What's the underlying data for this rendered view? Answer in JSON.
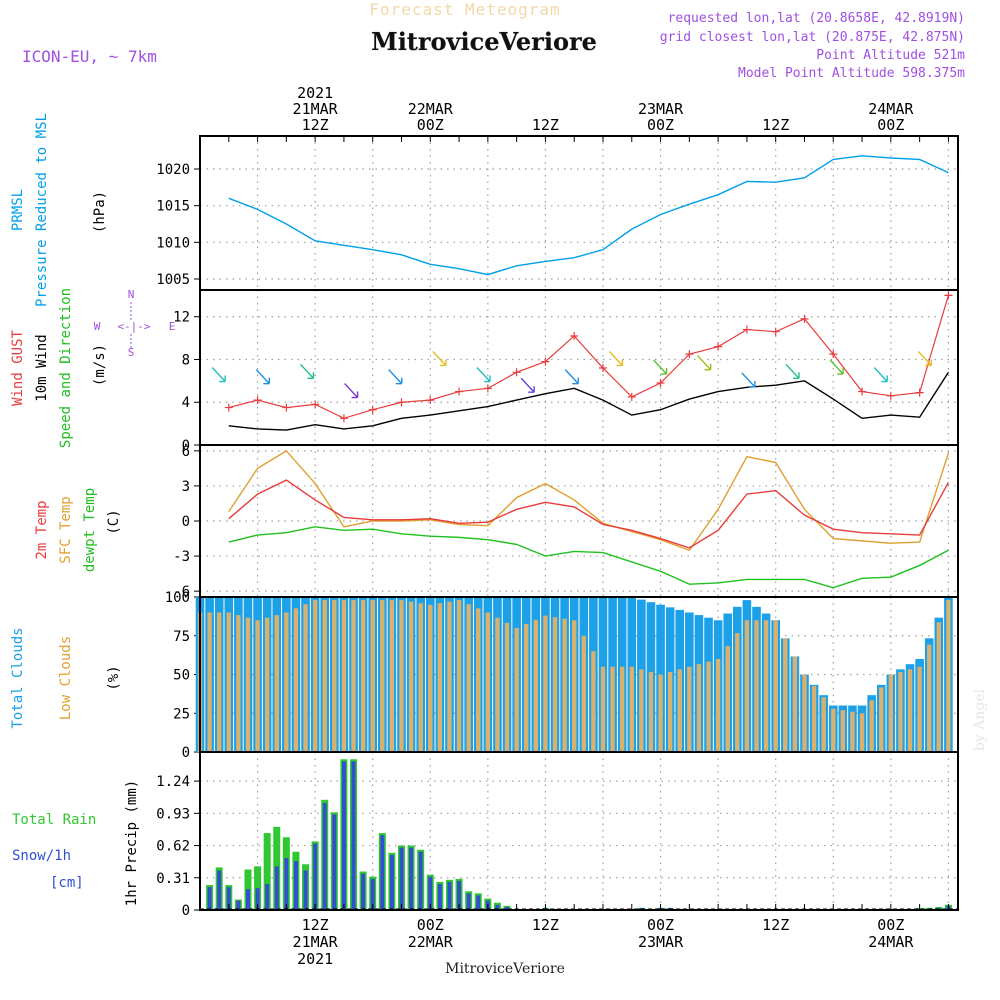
{
  "header": {
    "title_faded": "Forecast Meteogram",
    "location": "MitroviceVeriore",
    "model": "ICON-EU, ~ 7km",
    "requested": "requested lon,lat (20.8658E, 42.8919N)",
    "closest": "grid closest lon,lat (20.875E, 42.875N)",
    "point_alt": "Point Altitude 521m",
    "model_alt": "Model Point Altitude 598.375m",
    "watermark": "by Angel",
    "bottom_location": "MitroviceVeriore"
  },
  "time_axis": {
    "top": [
      {
        "t": 12,
        "lines": [
          "2021",
          "21MAR",
          "12Z"
        ]
      },
      {
        "t": 24,
        "lines": [
          "22MAR",
          "00Z"
        ]
      },
      {
        "t": 36,
        "lines": [
          "12Z"
        ]
      },
      {
        "t": 48,
        "lines": [
          "23MAR",
          "00Z"
        ]
      },
      {
        "t": 60,
        "lines": [
          "12Z"
        ]
      },
      {
        "t": 72,
        "lines": [
          "24MAR",
          "00Z"
        ]
      }
    ],
    "bottom": [
      {
        "t": 12,
        "lines": [
          "12Z",
          "21MAR",
          "2021"
        ]
      },
      {
        "t": 24,
        "lines": [
          "00Z",
          "22MAR"
        ]
      },
      {
        "t": 36,
        "lines": [
          "12Z"
        ]
      },
      {
        "t": 48,
        "lines": [
          "00Z",
          "23MAR"
        ]
      },
      {
        "t": 60,
        "lines": [
          "12Z"
        ]
      },
      {
        "t": 72,
        "lines": [
          "00Z",
          "24MAR"
        ]
      }
    ]
  },
  "panel_labels": {
    "pressure": {
      "line1": "PRMSL",
      "line2": "Pressure Reduced to MSL",
      "unit": "(hPa)"
    },
    "wind": {
      "gust": "Wind GUST",
      "wind10": "10m Wind",
      "dir": "Speed and Direction",
      "unit": "(m/s)",
      "compass_n": "N",
      "compass_s": "S",
      "compass_w": "W",
      "compass_e": "E",
      "compass_arrows": "<-|->"
    },
    "temp": {
      "t2m": "2m Temp",
      "sfc": "SFC Temp",
      "dew": "dewpt Temp",
      "unit": "(C)"
    },
    "clouds": {
      "total": "Total Clouds",
      "low": "Low Clouds",
      "unit": "(%)"
    },
    "precip": {
      "rain": "Total  Rain",
      "snow": "Snow/1h",
      "snow_unit": "[cm]",
      "unit": "1hr Precip (mm)"
    }
  },
  "colors": {
    "pressure": "#00a0e8",
    "gust": "#e83c3c",
    "wind": "#000000",
    "t2m": "#e83c3c",
    "sfc": "#e0a030",
    "dew": "#20c020",
    "total_clouds": "#1ca0e8",
    "low_clouds": "#d8b070",
    "rain": "#30c830",
    "snow": "#3050d0",
    "labels_purple": "#a050e0"
  },
  "chart_data": [
    {
      "type": "line",
      "title": "PRMSL Pressure Reduced to MSL",
      "ylabel": "(hPa)",
      "ylim": [
        1003.5,
        1024.5
      ],
      "yticks": [
        1005,
        1010,
        1015,
        1020
      ],
      "x": [
        3,
        6,
        9,
        12,
        15,
        18,
        21,
        24,
        27,
        30,
        33,
        36,
        39,
        42,
        45,
        48,
        51,
        54,
        57,
        60,
        63,
        66,
        69,
        72,
        75,
        78
      ],
      "series": [
        {
          "name": "PRMSL",
          "values": [
            1016,
            1014.5,
            1012.5,
            1010.2,
            1009.6,
            1009.0,
            1008.3,
            1007.0,
            1006.4,
            1005.6,
            1006.8,
            1007.4,
            1007.9,
            1009.0,
            1011.8,
            1013.8,
            1015.2,
            1016.5,
            1018.3,
            1018.2,
            1018.8,
            1021.3,
            1021.8,
            1021.5,
            1021.3,
            1019.5
          ]
        }
      ]
    },
    {
      "type": "line",
      "title": "Wind GUST / 10m Wind Speed and Direction",
      "ylabel": "(m/s)",
      "ylim": [
        0,
        14.5
      ],
      "yticks": [
        0,
        4,
        8,
        12
      ],
      "x": [
        3,
        6,
        9,
        12,
        15,
        18,
        21,
        24,
        27,
        30,
        33,
        36,
        39,
        42,
        45,
        48,
        51,
        54,
        57,
        60,
        63,
        66,
        69,
        72,
        75,
        78
      ],
      "series": [
        {
          "name": "Wind GUST",
          "values": [
            3.5,
            4.2,
            3.5,
            3.8,
            2.5,
            3.3,
            4.0,
            4.2,
            5.0,
            5.3,
            6.8,
            7.8,
            10.2,
            7.2,
            4.5,
            5.8,
            8.5,
            9.2,
            10.8,
            10.6,
            11.8,
            8.5,
            5.0,
            4.6,
            4.9,
            14.0
          ],
          "markers": [
            4.5,
            8.5,
            9.5,
            5.5,
            4.4,
            7.0
          ]
        },
        {
          "name": "10m Wind",
          "values": [
            1.8,
            1.5,
            1.4,
            1.9,
            1.5,
            1.8,
            2.5,
            2.8,
            3.2,
            3.6,
            4.2,
            4.8,
            5.3,
            4.2,
            2.8,
            3.3,
            4.3,
            5.0,
            5.4,
            5.6,
            6.0,
            4.3,
            2.5,
            2.8,
            2.6,
            6.8
          ]
        }
      ],
      "direction_speeds": [
        6.5,
        6.3,
        6.8,
        5.0,
        6.3,
        8.0,
        6.5,
        5.5,
        6.3,
        8.0,
        7.2,
        7.6,
        6.0,
        6.8,
        7.2,
        6.5,
        8.0
      ]
    },
    {
      "type": "line",
      "title": "2m Temp / SFC Temp / dewpt Temp",
      "ylabel": "(C)",
      "ylim": [
        -6.5,
        6.5
      ],
      "yticks": [
        -6,
        -3,
        0,
        3,
        6
      ],
      "x": [
        3,
        6,
        9,
        12,
        15,
        18,
        21,
        24,
        27,
        30,
        33,
        36,
        39,
        42,
        45,
        48,
        51,
        54,
        57,
        60,
        63,
        66,
        69,
        72,
        75,
        78
      ],
      "series": [
        {
          "name": "2m Temp",
          "values": [
            0.2,
            2.3,
            3.5,
            1.8,
            0.3,
            0.1,
            0.1,
            0.2,
            -0.2,
            -0.1,
            1.0,
            1.6,
            1.2,
            -0.3,
            -0.8,
            -1.5,
            -2.3,
            -0.8,
            2.3,
            2.6,
            0.5,
            -0.7,
            -1.0,
            -1.1,
            -1.2,
            3.3
          ]
        },
        {
          "name": "SFC Temp",
          "values": [
            0.8,
            4.5,
            6.0,
            3.2,
            -0.5,
            0.0,
            0.0,
            0.1,
            -0.3,
            -0.4,
            2.0,
            3.2,
            1.8,
            -0.2,
            -0.9,
            -1.6,
            -2.5,
            1.0,
            5.5,
            5.0,
            1.0,
            -1.5,
            -1.7,
            -1.9,
            -1.8,
            5.8
          ]
        },
        {
          "name": "dewpt Temp",
          "values": [
            -1.8,
            -1.2,
            -1.0,
            -0.5,
            -0.8,
            -0.7,
            -1.1,
            -1.3,
            -1.4,
            -1.6,
            -2.0,
            -3.0,
            -2.6,
            -2.7,
            -3.5,
            -4.3,
            -5.4,
            -5.3,
            -5.0,
            -5.0,
            -5.0,
            -5.7,
            -4.9,
            -4.8,
            -3.8,
            -2.5
          ]
        }
      ]
    },
    {
      "type": "bar",
      "title": "Total Clouds / Low Clouds",
      "ylabel": "(%)",
      "ylim": [
        0,
        100
      ],
      "yticks": [
        0,
        25,
        50,
        75,
        100
      ],
      "x": [
        3,
        6,
        9,
        12,
        15,
        18,
        21,
        24,
        27,
        30,
        33,
        36,
        39,
        42,
        45,
        48,
        51,
        54,
        57,
        60,
        63,
        66,
        69,
        72,
        75,
        78
      ],
      "series": [
        {
          "name": "Total Clouds",
          "values": [
            100,
            100,
            100,
            100,
            100,
            100,
            100,
            100,
            100,
            100,
            100,
            100,
            100,
            100,
            100,
            95,
            90,
            85,
            98,
            85,
            50,
            30,
            30,
            50,
            60,
            100
          ]
        },
        {
          "name": "Low Clouds",
          "values": [
            90,
            85,
            90,
            98,
            98,
            98,
            98,
            95,
            98,
            90,
            80,
            88,
            85,
            55,
            55,
            50,
            55,
            60,
            85,
            85,
            50,
            28,
            25,
            50,
            55,
            98
          ]
        }
      ]
    },
    {
      "type": "bar",
      "title": "Total Rain / Snow/1h",
      "ylabel": "1hr Precip (mm)",
      "ylim": [
        0,
        1.52
      ],
      "yticks": [
        0,
        0.31,
        0.62,
        0.93,
        1.24
      ],
      "x": [
        1,
        2,
        3,
        4,
        5,
        6,
        7,
        8,
        9,
        10,
        11,
        12,
        13,
        14,
        15,
        16,
        17,
        18,
        19,
        20,
        21,
        22,
        23,
        24,
        25,
        26,
        27,
        28,
        29,
        30,
        31,
        32,
        33,
        34,
        35,
        36,
        37,
        38,
        39,
        40,
        41,
        42,
        43,
        44,
        45,
        46,
        47,
        48,
        49,
        50,
        51,
        52,
        53,
        54,
        55,
        56,
        57,
        58,
        59,
        60,
        61,
        62,
        63,
        64,
        65,
        66,
        67,
        68,
        69,
        70,
        71,
        72,
        73,
        74,
        75,
        76,
        77,
        78
      ],
      "series": [
        {
          "name": "Total Rain",
          "values": [
            0.24,
            0.41,
            0.24,
            0.1,
            0.39,
            0.42,
            0.74,
            0.8,
            0.7,
            0.56,
            0.44,
            0.66,
            1.06,
            0.94,
            1.45,
            1.45,
            0.37,
            0.32,
            0.74,
            0.55,
            0.62,
            0.62,
            0.58,
            0.34,
            0.27,
            0.29,
            0.3,
            0.18,
            0.16,
            0.11,
            0.07,
            0.04,
            0.01,
            0,
            0,
            0.02,
            0.01,
            0,
            0,
            0,
            0,
            0,
            0,
            0,
            0,
            0.02,
            0,
            0.02,
            0.02,
            0.01,
            0,
            0,
            0,
            0,
            0,
            0,
            0,
            0,
            0,
            0,
            0,
            0,
            0,
            0,
            0,
            0,
            0,
            0,
            0,
            0,
            0,
            0,
            0,
            0,
            0.02,
            0.02,
            0.03,
            0.05
          ]
        },
        {
          "name": "Snow/1h",
          "values": [
            0.22,
            0.38,
            0.22,
            0.09,
            0.2,
            0.21,
            0.25,
            0.42,
            0.5,
            0.47,
            0.38,
            0.64,
            1.03,
            0.92,
            1.43,
            1.43,
            0.35,
            0.3,
            0.72,
            0.53,
            0.6,
            0.6,
            0.56,
            0.32,
            0.25,
            0.27,
            0.28,
            0.16,
            0.14,
            0.09,
            0.05,
            0.03,
            0.01,
            0,
            0,
            0.02,
            0.01,
            0,
            0,
            0,
            0,
            0,
            0,
            0,
            0,
            0.02,
            0,
            0.02,
            0.02,
            0.01,
            0,
            0,
            0,
            0,
            0,
            0,
            0,
            0,
            0,
            0,
            0,
            0,
            0,
            0,
            0,
            0,
            0,
            0,
            0,
            0,
            0,
            0,
            0,
            0,
            0.01,
            0.01,
            0.02,
            0.04
          ]
        }
      ]
    }
  ]
}
